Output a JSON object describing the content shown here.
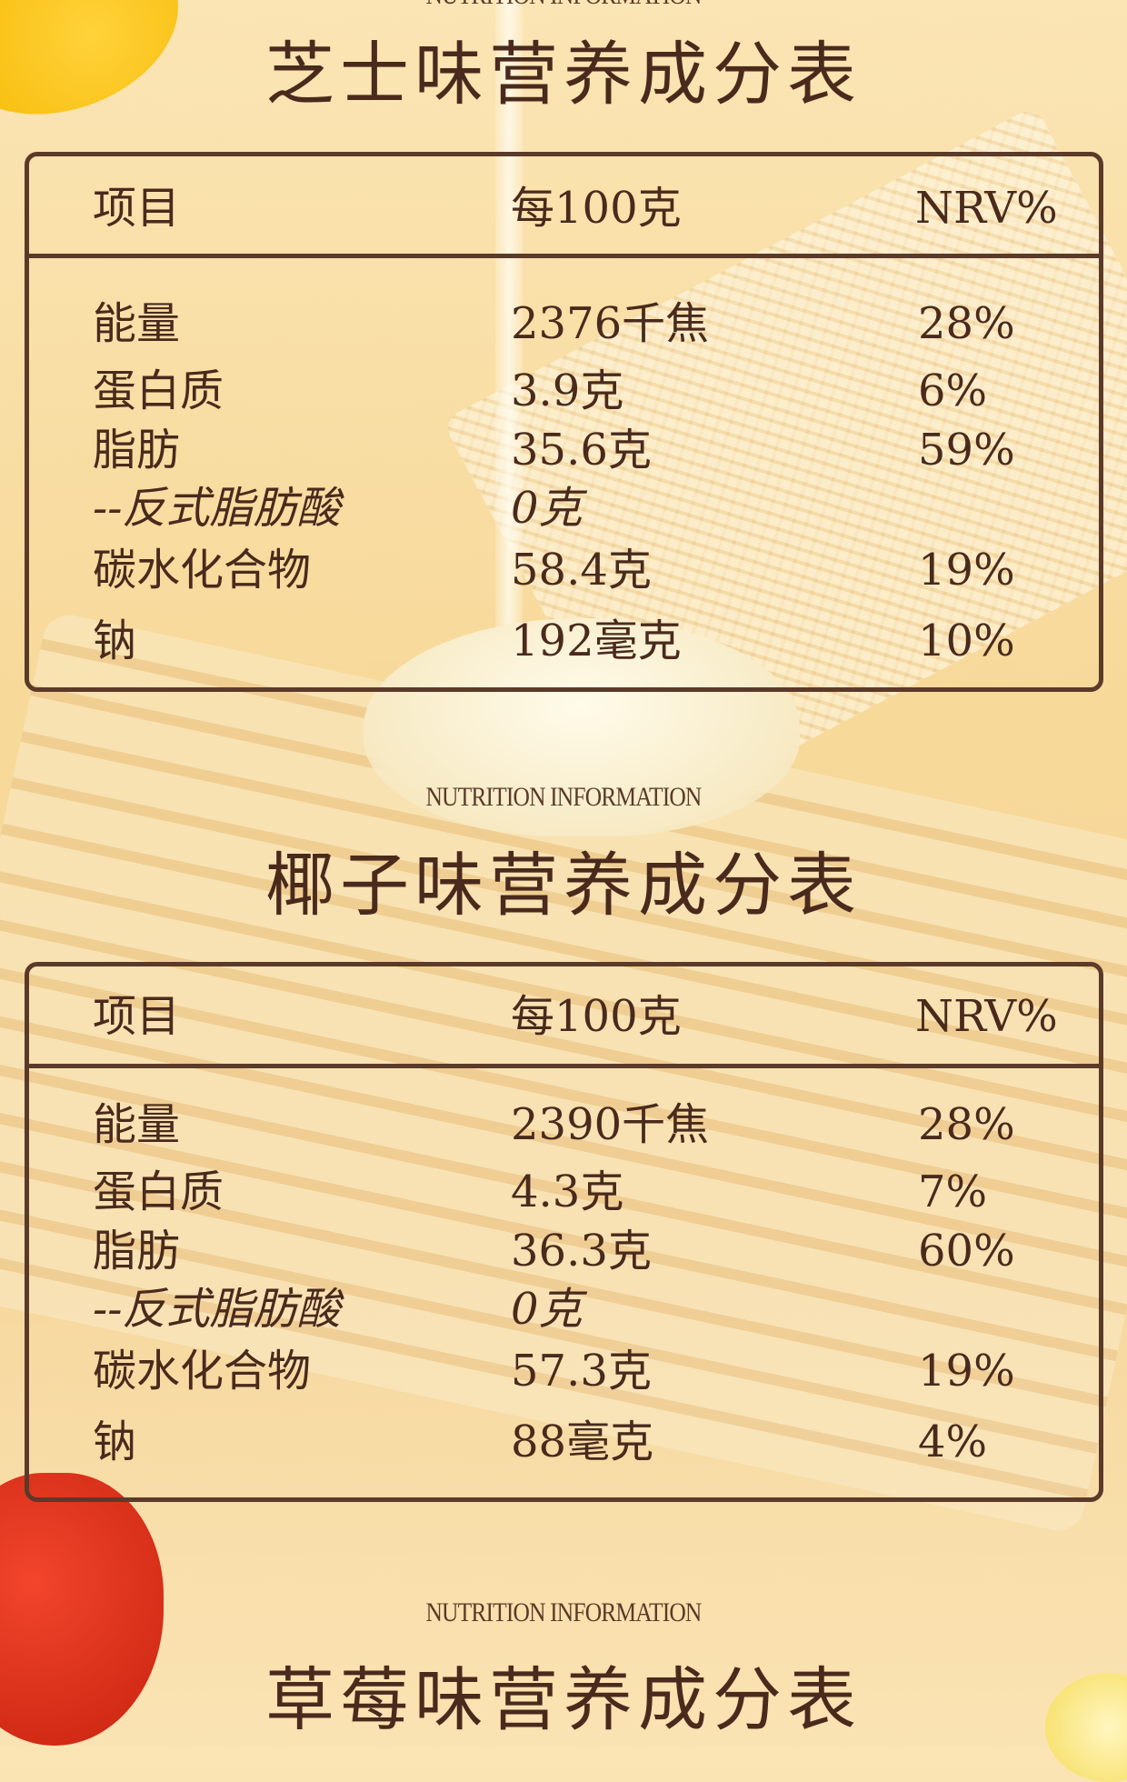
{
  "columns": [
    "项目",
    "每100克",
    "NRV%"
  ],
  "subtitle": "NUTRITION INFORMATION",
  "tables": [
    {
      "title": "芝士味营养成分表",
      "rows": [
        [
          "能量",
          "2376千焦",
          "28%"
        ],
        [
          "蛋白质",
          "3.9克",
          "6%"
        ],
        [
          "脂肪",
          "35.6克",
          "59%"
        ],
        [
          "--反式脂肪酸",
          "0克",
          ""
        ],
        [
          "碳水化合物",
          "58.4克",
          "19%"
        ],
        [
          "钠",
          "192毫克",
          "10%"
        ]
      ]
    },
    {
      "title": "椰子味营养成分表",
      "rows": [
        [
          "能量",
          "2390千焦",
          "28%"
        ],
        [
          "蛋白质",
          "4.3克",
          "7%"
        ],
        [
          "脂肪",
          "36.3克",
          "60%"
        ],
        [
          "--反式脂肪酸",
          "0克",
          ""
        ],
        [
          "碳水化合物",
          "57.3克",
          "19%"
        ],
        [
          "钠",
          "88毫克",
          "4%"
        ]
      ]
    },
    {
      "title": "草莓味营养成分表"
    }
  ],
  "colors": {
    "background": "#f7d99a",
    "text": "#4a2a1c",
    "border": "#5b3a2a"
  }
}
